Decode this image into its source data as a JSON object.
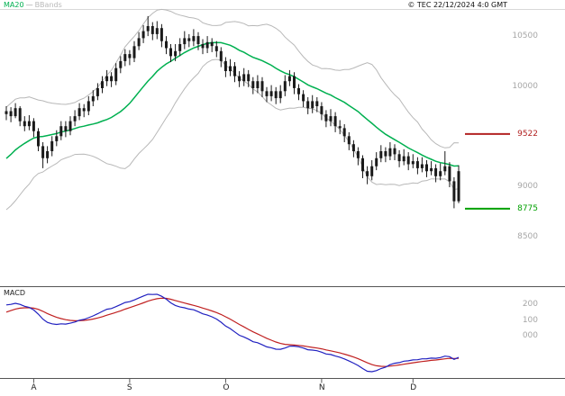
{
  "header": {
    "ma20_label": "MA20",
    "separator": "—",
    "bbands_label": "BBands",
    "copyright": "© TEC 22/12/2024 4:0 GMT"
  },
  "colors": {
    "ma20": "#00b050",
    "bbands": "#b8b8b8",
    "candle": "#1a1a1a",
    "level_red": "#b22222",
    "level_green": "#00a000",
    "macd_line": "#2020c0",
    "signal_line": "#c02020",
    "axis_text": "#a6a6a6",
    "frame": "#555555",
    "top_rule": "#d8d8d8"
  },
  "chart_data": {
    "type": "candlestick",
    "title": "",
    "price_panel": {
      "ylim": [
        8100,
        10780
      ],
      "y_axis_labels": [
        {
          "label": "10500",
          "value": 10500
        },
        {
          "label": "10000",
          "value": 10000
        },
        {
          "label": "9000",
          "value": 9000
        },
        {
          "label": "8500",
          "value": 8500
        }
      ],
      "levels": [
        {
          "label": "9522",
          "value": 9522,
          "color_key": "level_red"
        },
        {
          "label": "8775",
          "value": 8775,
          "color_key": "level_green"
        }
      ],
      "candles_ohlc": [
        [
          9720,
          9800,
          9660,
          9750
        ],
        [
          9750,
          9790,
          9640,
          9700
        ],
        [
          9700,
          9830,
          9680,
          9780
        ],
        [
          9780,
          9800,
          9600,
          9650
        ],
        [
          9650,
          9700,
          9550,
          9600
        ],
        [
          9600,
          9710,
          9560,
          9650
        ],
        [
          9650,
          9680,
          9490,
          9550
        ],
        [
          9550,
          9580,
          9350,
          9400
        ],
        [
          9400,
          9440,
          9180,
          9280
        ],
        [
          9280,
          9400,
          9230,
          9350
        ],
        [
          9350,
          9500,
          9300,
          9450
        ],
        [
          9450,
          9560,
          9400,
          9500
        ],
        [
          9500,
          9650,
          9460,
          9600
        ],
        [
          9600,
          9650,
          9490,
          9550
        ],
        [
          9550,
          9700,
          9510,
          9650
        ],
        [
          9650,
          9760,
          9600,
          9700
        ],
        [
          9700,
          9830,
          9660,
          9780
        ],
        [
          9780,
          9820,
          9690,
          9750
        ],
        [
          9750,
          9900,
          9710,
          9850
        ],
        [
          9850,
          9960,
          9800,
          9900
        ],
        [
          9900,
          10030,
          9860,
          9980
        ],
        [
          9980,
          10100,
          9930,
          10050
        ],
        [
          10050,
          10160,
          10000,
          10100
        ],
        [
          10100,
          10140,
          9990,
          10050
        ],
        [
          10050,
          10230,
          10010,
          10180
        ],
        [
          10180,
          10300,
          10130,
          10250
        ],
        [
          10250,
          10370,
          10200,
          10320
        ],
        [
          10320,
          10360,
          10210,
          10280
        ],
        [
          10280,
          10450,
          10240,
          10400
        ],
        [
          10400,
          10540,
          10360,
          10480
        ],
        [
          10480,
          10610,
          10430,
          10550
        ],
        [
          10550,
          10700,
          10500,
          10600
        ],
        [
          10600,
          10640,
          10460,
          10520
        ],
        [
          10520,
          10650,
          10470,
          10580
        ],
        [
          10580,
          10620,
          10390,
          10450
        ],
        [
          10450,
          10500,
          10320,
          10380
        ],
        [
          10380,
          10420,
          10240,
          10300
        ],
        [
          10300,
          10420,
          10250,
          10350
        ],
        [
          10350,
          10480,
          10300,
          10420
        ],
        [
          10420,
          10550,
          10370,
          10480
        ],
        [
          10480,
          10520,
          10390,
          10450
        ],
        [
          10450,
          10570,
          10400,
          10500
        ],
        [
          10500,
          10540,
          10360,
          10420
        ],
        [
          10420,
          10470,
          10320,
          10380
        ],
        [
          10380,
          10500,
          10330,
          10440
        ],
        [
          10440,
          10480,
          10340,
          10400
        ],
        [
          10400,
          10450,
          10290,
          10350
        ],
        [
          10350,
          10390,
          10190,
          10250
        ],
        [
          10250,
          10290,
          10090,
          10150
        ],
        [
          10150,
          10270,
          10100,
          10200
        ],
        [
          10200,
          10240,
          10040,
          10100
        ],
        [
          10100,
          10150,
          9990,
          10050
        ],
        [
          10050,
          10180,
          10000,
          10120
        ],
        [
          10120,
          10160,
          9990,
          10050
        ],
        [
          10050,
          10090,
          9920,
          9980
        ],
        [
          9980,
          10110,
          9930,
          10050
        ],
        [
          10050,
          10090,
          9890,
          9950
        ],
        [
          9950,
          9990,
          9840,
          9900
        ],
        [
          9900,
          10010,
          9850,
          9950
        ],
        [
          9950,
          9990,
          9820,
          9880
        ],
        [
          9880,
          10010,
          9830,
          9950
        ],
        [
          9950,
          10110,
          9900,
          10050
        ],
        [
          10050,
          10160,
          10000,
          10100
        ],
        [
          10100,
          10140,
          9920,
          9980
        ],
        [
          9980,
          10020,
          9860,
          9920
        ],
        [
          9920,
          9960,
          9790,
          9850
        ],
        [
          9850,
          9890,
          9720,
          9780
        ],
        [
          9780,
          9910,
          9730,
          9850
        ],
        [
          9850,
          9890,
          9740,
          9800
        ],
        [
          9800,
          9840,
          9660,
          9720
        ],
        [
          9720,
          9760,
          9590,
          9650
        ],
        [
          9650,
          9770,
          9600,
          9700
        ],
        [
          9700,
          9740,
          9540,
          9600
        ],
        [
          9600,
          9660,
          9520,
          9580
        ],
        [
          9580,
          9620,
          9440,
          9500
        ],
        [
          9500,
          9540,
          9360,
          9420
        ],
        [
          9420,
          9460,
          9290,
          9350
        ],
        [
          9350,
          9390,
          9210,
          9280
        ],
        [
          9280,
          9310,
          9080,
          9150
        ],
        [
          9150,
          9200,
          9020,
          9100
        ],
        [
          9100,
          9260,
          9060,
          9200
        ],
        [
          9200,
          9340,
          9160,
          9280
        ],
        [
          9280,
          9410,
          9240,
          9350
        ],
        [
          9350,
          9390,
          9240,
          9300
        ],
        [
          9300,
          9440,
          9260,
          9380
        ],
        [
          9380,
          9420,
          9260,
          9320
        ],
        [
          9320,
          9360,
          9190,
          9250
        ],
        [
          9250,
          9370,
          9210,
          9300
        ],
        [
          9300,
          9340,
          9160,
          9220
        ],
        [
          9220,
          9320,
          9180,
          9250
        ],
        [
          9250,
          9290,
          9120,
          9180
        ],
        [
          9180,
          9290,
          9140,
          9220
        ],
        [
          9220,
          9260,
          9090,
          9150
        ],
        [
          9150,
          9250,
          9110,
          9180
        ],
        [
          9180,
          9220,
          9040,
          9100
        ],
        [
          9100,
          9230,
          9060,
          9150
        ],
        [
          9150,
          9350,
          9110,
          9200
        ],
        [
          9200,
          9240,
          8990,
          9050
        ],
        [
          9050,
          9090,
          8780,
          8850
        ],
        [
          8850,
          9210,
          8830,
          9150
        ]
      ]
    },
    "x_axis": {
      "months": [
        {
          "label": "A",
          "index": 6
        },
        {
          "label": "S",
          "index": 27
        },
        {
          "label": "O",
          "index": 48
        },
        {
          "label": "N",
          "index": 69
        },
        {
          "label": "D",
          "index": 89
        }
      ]
    },
    "indicators": {
      "ma_period": 20,
      "bb_period": 20,
      "bb_mult": 2,
      "macd_fast": 12,
      "macd_slow": 26,
      "macd_signal": 9,
      "warmup_closes": [
        8850,
        8900,
        8870,
        8950,
        9000,
        9080,
        9050,
        9150,
        9200,
        9180,
        9260,
        9300,
        9280,
        9380,
        9420,
        9400,
        9500,
        9560,
        9620,
        9700
      ]
    },
    "macd_panel": {
      "title": "MACD",
      "axis_labels": [
        {
          "label": "200",
          "value": 200
        },
        {
          "label": "100",
          "value": 100
        },
        {
          "label": "000",
          "value": 0
        }
      ]
    }
  }
}
